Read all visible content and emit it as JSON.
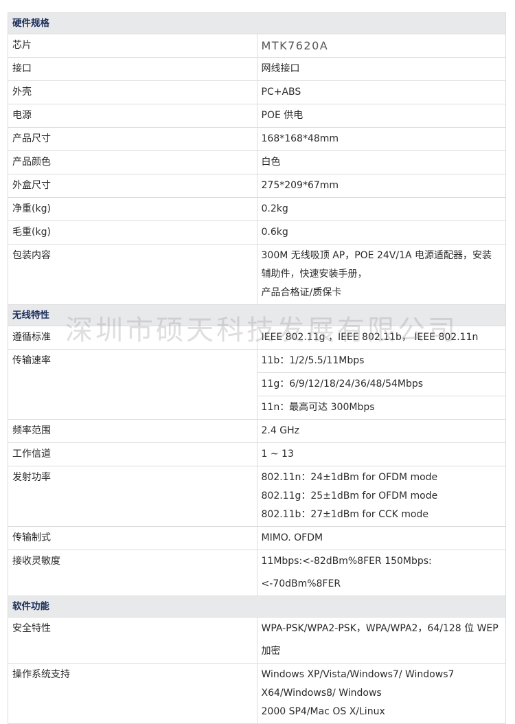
{
  "sections": [
    {
      "title": "硬件规格",
      "rows": [
        {
          "key": "芯片",
          "values": [
            "MTK7620A"
          ],
          "style": "chip"
        },
        {
          "key": "接口",
          "values": [
            "网线接口"
          ]
        },
        {
          "key": "外壳",
          "values": [
            "PC+ABS"
          ]
        },
        {
          "key": "电源",
          "values": [
            "POE 供电"
          ]
        },
        {
          "key": "产品尺寸",
          "values": [
            "168*168*48mm"
          ]
        },
        {
          "key": "产品颜色",
          "values": [
            "白色"
          ]
        },
        {
          "key": "外盒尺寸",
          "values": [
            "275*209*67mm"
          ]
        },
        {
          "key": "净重(kg)",
          "values": [
            "0.2kg"
          ]
        },
        {
          "key": "毛重(kg)",
          "values": [
            "0.6kg"
          ]
        },
        {
          "key": "包装内容",
          "values": [
            "300M 无线吸顶 AP，POE 24V/1A 电源适配器，安装辅助件，快速安装手册，",
            "产品合格证/质保卡"
          ],
          "multiline": true
        }
      ]
    },
    {
      "title": "无线特性",
      "rows": [
        {
          "key": "遵循标准",
          "values": [
            "IEEE 802.11g ，IEEE 802.11b， IEEE 802.11n"
          ]
        },
        {
          "key": "传输速率",
          "values": [
            "11b：1/2/5.5/11Mbps",
            "11g：6/9/12/18/24/36/48/54Mbps",
            "11n：最高可达 300Mbps"
          ],
          "split": true
        },
        {
          "key": "频率范围",
          "values": [
            "2.4 GHz"
          ]
        },
        {
          "key": "工作信道",
          "values": [
            "1 ~ 13"
          ]
        },
        {
          "key": "发射功率",
          "values": [
            "802.11n：24±1dBm for OFDM mode",
            "802.11g：25±1dBm for OFDM mode",
            "802.11b：27±1dBm for CCK mode"
          ],
          "multiline": true
        },
        {
          "key": "传输制式",
          "values": [
            "MIMO. OFDM"
          ]
        },
        {
          "key": "接收灵敏度",
          "values": [
            "11Mbps:<-82dBm%8FER 150Mbps:<-70dBm%8FER"
          ]
        }
      ]
    },
    {
      "title": "软件功能",
      "rows": [
        {
          "key": "安全特性",
          "values": [
            "WPA-PSK/WPA2-PSK，WPA/WPA2，64/128 位 WEP 加密"
          ]
        },
        {
          "key": "操作系统支持",
          "values": [
            "Windows XP/Vista/Windows7/ Windows7 X64/Windows8/ Windows",
            "2000 SP4/Mac OS X/Linux"
          ],
          "multiline": true
        }
      ]
    }
  ],
  "watermark": "深圳市硕天科技发展有限公司"
}
